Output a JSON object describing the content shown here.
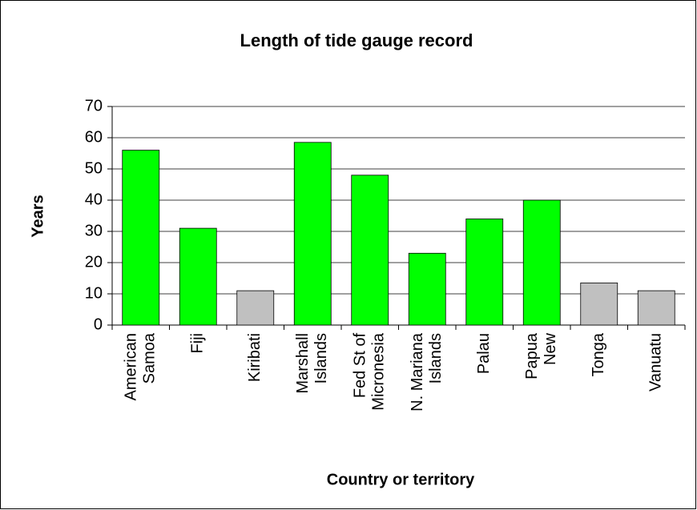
{
  "chart_data": {
    "type": "bar",
    "title": "Length of tide gauge record",
    "x_label": "Country or territory",
    "y_label": "Years",
    "categories": [
      "American\nSamoa",
      "Fiji",
      "Kiribati",
      "Marshall\nIslands",
      "Fed St of\nMicronesia",
      "N. Mariana\nIslands",
      "Palau",
      "Papua\nNew",
      "Tonga",
      "Vanuatu"
    ],
    "values": [
      56,
      31,
      11,
      58.5,
      48,
      23,
      34,
      40,
      13.5,
      11
    ],
    "colors": [
      "#00ff00",
      "#00ff00",
      "#c0c0c0",
      "#00ff00",
      "#00ff00",
      "#00ff00",
      "#00ff00",
      "#00ff00",
      "#c0c0c0",
      "#c0c0c0"
    ],
    "ylim": [
      0,
      70
    ],
    "yticks": [
      0,
      10,
      20,
      30,
      40,
      50,
      60,
      70
    ],
    "grid": true
  }
}
